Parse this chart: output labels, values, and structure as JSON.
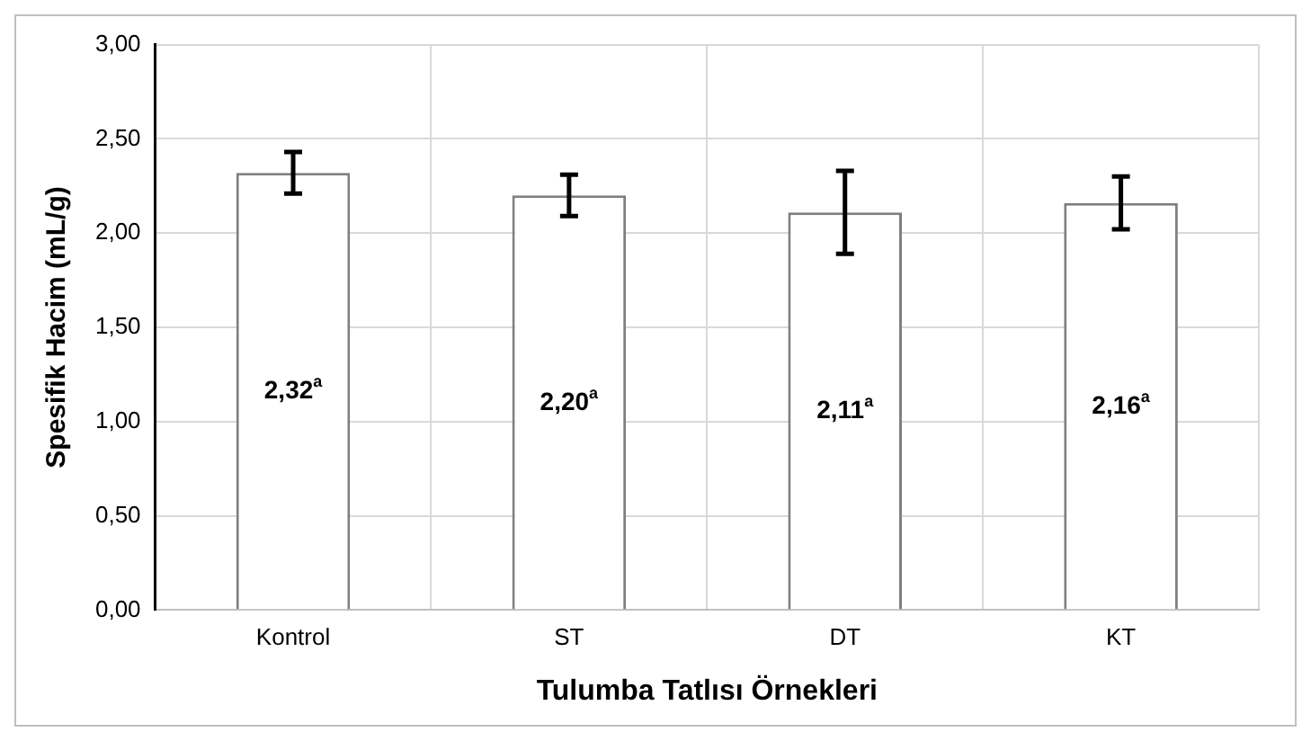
{
  "chart_data": {
    "type": "bar",
    "xlabel": "Tulumba Tatlısı Örnekleri",
    "ylabel": "Spesifik Hacim (mL/g)",
    "categories": [
      "Kontrol",
      "ST",
      "DT",
      "KT"
    ],
    "values": [
      2.32,
      2.2,
      2.11,
      2.16
    ],
    "errors": [
      0.11,
      0.11,
      0.22,
      0.14
    ],
    "value_labels": [
      "2,32$^{a}$",
      "2,20$^{a}$",
      "2,11$^{a}$",
      "2,16$^{a}$"
    ],
    "color": "#ffffff",
    "ylim": [
      0,
      3
    ],
    "yticks": [
      {
        "value": 0,
        "label": "0,00"
      },
      {
        "value": 0.5,
        "label": "0,50"
      },
      {
        "value": 1,
        "label": "1,00"
      },
      {
        "value": 1.5,
        "label": "1,50"
      },
      {
        "value": 2,
        "label": "2,00"
      },
      {
        "value": 2.5,
        "label": "2,50"
      },
      {
        "value": 3,
        "label": "3,00"
      }
    ],
    "grid": true
  }
}
